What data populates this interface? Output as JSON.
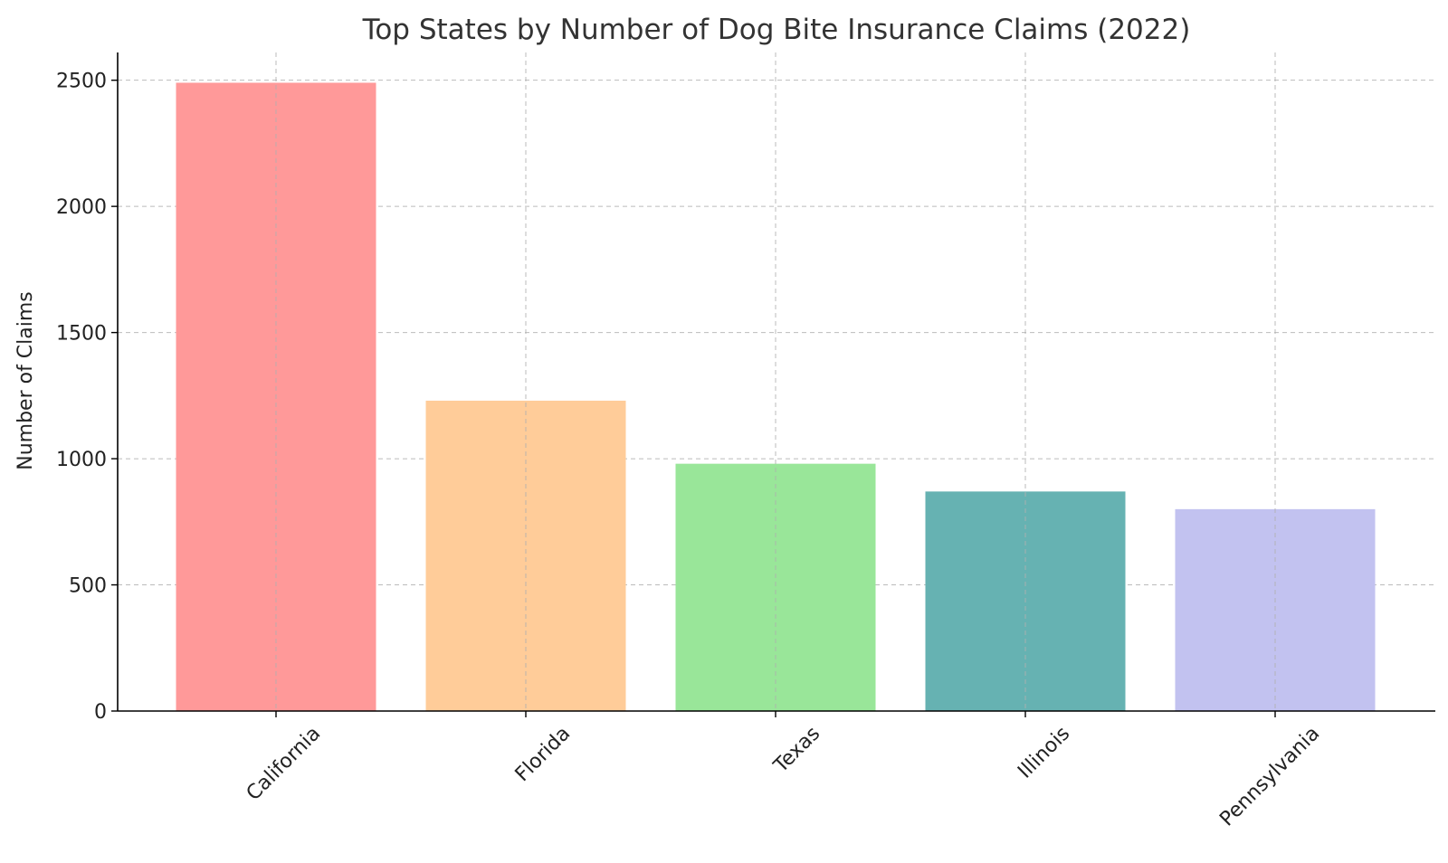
{
  "chart_data": {
    "type": "bar",
    "title": "Top States by Number of Dog Bite Insurance Claims (2022)",
    "xlabel": "",
    "ylabel": "Number of Claims",
    "categories": [
      "California",
      "Florida",
      "Texas",
      "Illinois",
      "Pennsylvania"
    ],
    "values": [
      2490,
      1230,
      980,
      870,
      800
    ],
    "colors": [
      "#ff9999",
      "#ffcc99",
      "#99e699",
      "#66b2b2",
      "#c2c2f0"
    ],
    "ylim": [
      0,
      2610
    ],
    "yticks": [
      0,
      500,
      1000,
      1500,
      2000,
      2500
    ],
    "grid": true,
    "legend": "none"
  }
}
